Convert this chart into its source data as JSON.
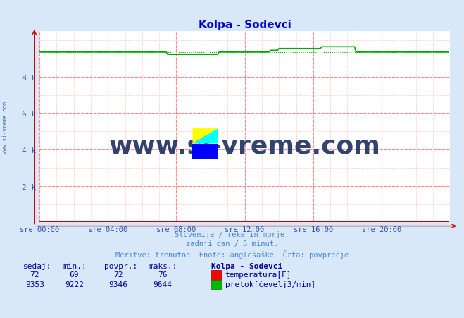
{
  "title": "Kolpa - Sodevci",
  "title_color": "#0000cc",
  "bg_color": "#d8e8f8",
  "plot_bg_color": "#ffffff",
  "grid_color_major": "#ff8888",
  "grid_color_minor": "#ffcccc",
  "tick_color": "#2255aa",
  "x_tick_labels": [
    "sre 00:00",
    "sre 04:00",
    "sre 08:00",
    "sre 12:00",
    "sre 16:00",
    "sre 20:00"
  ],
  "x_tick_positions": [
    0,
    4,
    8,
    12,
    16,
    20
  ],
  "ylim": [
    0,
    10500
  ],
  "xlim": [
    0,
    24
  ],
  "subtitle_lines": [
    "Slovenija / reke in morje.",
    "zadnji dan / 5 minut.",
    "Meritve: trenutne  Enote: anglešaške  Črta: povprečje"
  ],
  "footer_color": "#4488cc",
  "temp_color": "#cc0000",
  "flow_color": "#00aa00",
  "temp_avg": 72,
  "temp_min": 69,
  "temp_max": 76,
  "temp_current": 72,
  "flow_avg": 9346,
  "flow_min": 9222,
  "flow_max": 9644,
  "flow_current": 9353,
  "watermark_text": "www.si-vreme.com",
  "watermark_color": "#1a3060",
  "sidebar_text": "www.si-vreme.com",
  "sidebar_color": "#3366bb",
  "n_points": 288
}
